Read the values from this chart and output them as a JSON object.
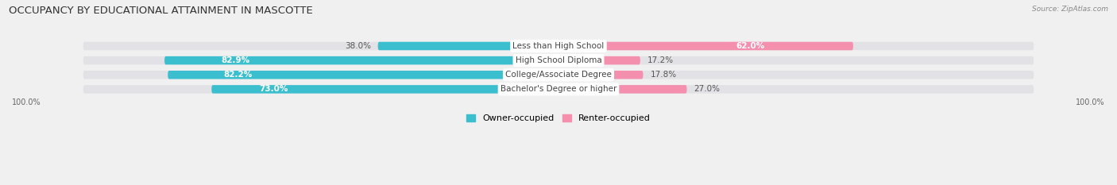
{
  "title": "OCCUPANCY BY EDUCATIONAL ATTAINMENT IN MASCOTTE",
  "source": "Source: ZipAtlas.com",
  "categories": [
    "Less than High School",
    "High School Diploma",
    "College/Associate Degree",
    "Bachelor's Degree or higher"
  ],
  "owner_pct": [
    38.0,
    82.9,
    82.2,
    73.0
  ],
  "renter_pct": [
    62.0,
    17.2,
    17.8,
    27.0
  ],
  "owner_color": "#3BBFCF",
  "renter_color": "#F48FAE",
  "bar_height": 0.58,
  "title_fontsize": 9.5,
  "label_fontsize": 7.5,
  "pct_fontsize": 7.5,
  "axis_label_fontsize": 7,
  "legend_fontsize": 8,
  "background_color": "#f0f0f0",
  "bar_bg_color": "#e2e2e6"
}
